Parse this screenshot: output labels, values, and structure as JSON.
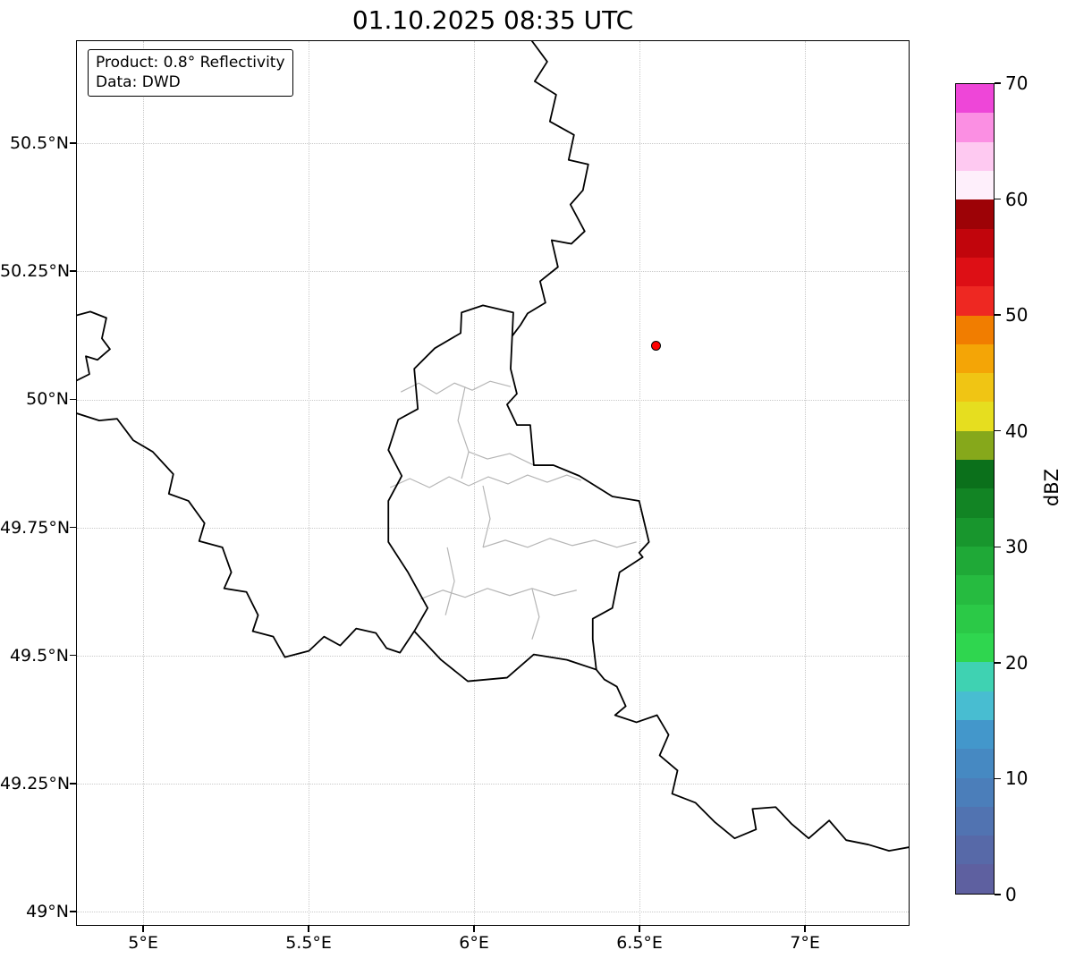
{
  "title": "01.10.2025 08:35 UTC",
  "annotation": {
    "line1": "Product: 0.8° Reflectivity",
    "line2": "Data: DWD"
  },
  "axes": {
    "lat_ticks": [
      {
        "label": "50.5°N",
        "value": 50.5
      },
      {
        "label": "50.25°N",
        "value": 50.25
      },
      {
        "label": "50°N",
        "value": 50.0
      },
      {
        "label": "49.75°N",
        "value": 49.75
      },
      {
        "label": "49.5°N",
        "value": 49.5
      },
      {
        "label": "49.25°N",
        "value": 49.25
      },
      {
        "label": "49°N",
        "value": 49.0
      }
    ],
    "lon_ticks": [
      {
        "label": "5°E",
        "value": 5.0
      },
      {
        "label": "5.5°E",
        "value": 5.5
      },
      {
        "label": "6°E",
        "value": 6.0
      },
      {
        "label": "6.5°E",
        "value": 6.5
      },
      {
        "label": "7°E",
        "value": 7.0
      }
    ],
    "lon_range": [
      4.797,
      7.316
    ],
    "lat_range": [
      48.972,
      50.701
    ]
  },
  "marker": {
    "description": "radar site dot",
    "lon": 6.548,
    "lat": 50.107,
    "color": "#ff0000"
  },
  "colorbar": {
    "label": "dBZ",
    "min": 0,
    "max": 70,
    "ticks": [
      0,
      10,
      20,
      30,
      40,
      50,
      60,
      70
    ],
    "segments": [
      {
        "from": 0,
        "to": 2.5,
        "color": "#5e60a0"
      },
      {
        "from": 2.5,
        "to": 5,
        "color": "#5769a8"
      },
      {
        "from": 5,
        "to": 7.5,
        "color": "#5173b1"
      },
      {
        "from": 7.5,
        "to": 10,
        "color": "#4b7eba"
      },
      {
        "from": 10,
        "to": 12.5,
        "color": "#4689c2"
      },
      {
        "from": 12.5,
        "to": 15,
        "color": "#4397cb"
      },
      {
        "from": 15,
        "to": 17.5,
        "color": "#48bdd1"
      },
      {
        "from": 17.5,
        "to": 20,
        "color": "#3fd2b2"
      },
      {
        "from": 20,
        "to": 22.5,
        "color": "#2fd64f"
      },
      {
        "from": 22.5,
        "to": 25,
        "color": "#2bc947"
      },
      {
        "from": 25,
        "to": 27.5,
        "color": "#26bb40"
      },
      {
        "from": 27.5,
        "to": 30,
        "color": "#1fa937"
      },
      {
        "from": 30,
        "to": 32.5,
        "color": "#18962d"
      },
      {
        "from": 32.5,
        "to": 35,
        "color": "#128424"
      },
      {
        "from": 35,
        "to": 37.5,
        "color": "#0b701b"
      },
      {
        "from": 37.5,
        "to": 40,
        "color": "#86a81b"
      },
      {
        "from": 40,
        "to": 42.5,
        "color": "#e6de1f"
      },
      {
        "from": 42.5,
        "to": 45,
        "color": "#f0c514"
      },
      {
        "from": 45,
        "to": 47.5,
        "color": "#f4a506"
      },
      {
        "from": 47.5,
        "to": 50,
        "color": "#f17d00"
      },
      {
        "from": 50,
        "to": 52.5,
        "color": "#ee2822"
      },
      {
        "from": 52.5,
        "to": 55,
        "color": "#dd0f15"
      },
      {
        "from": 55,
        "to": 57.5,
        "color": "#c1050c"
      },
      {
        "from": 57.5,
        "to": 60,
        "color": "#9d0206"
      },
      {
        "from": 60,
        "to": 62.5,
        "color": "#feeffb"
      },
      {
        "from": 62.5,
        "to": 65,
        "color": "#fec9f1"
      },
      {
        "from": 65,
        "to": 67.5,
        "color": "#fb8fe3"
      },
      {
        "from": 67.5,
        "to": 70,
        "color": "#ee46d8"
      }
    ]
  }
}
